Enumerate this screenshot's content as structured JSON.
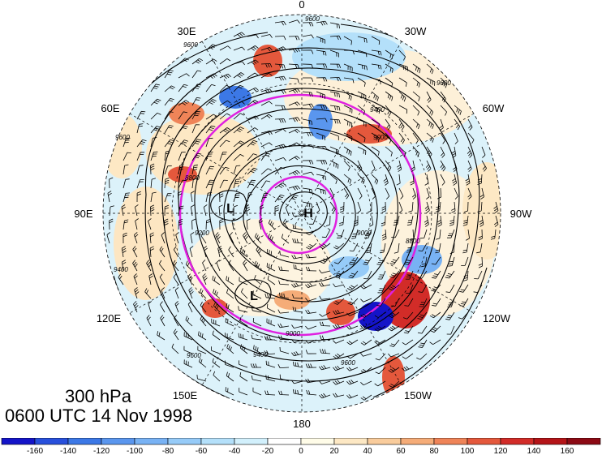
{
  "map": {
    "level_label": "300 hPa",
    "time_label": "0600 UTC 14 Nov 1998",
    "longitude_labels": {
      "top": "0",
      "bottom": "180",
      "left": "90E",
      "right": "90W",
      "upper_left": "30E",
      "upper_left2": "60E",
      "upper_right": "30W",
      "upper_right2": "60W",
      "lower_left": "120E",
      "lower_left2": "150E",
      "lower_right": "120W",
      "lower_right2": "150W"
    },
    "pressure_centers": [
      {
        "label": "L"
      },
      {
        "label": "H"
      },
      {
        "label": "L"
      }
    ],
    "contour_labels": [
      "9600",
      "9600",
      "9400",
      "9600",
      "9000",
      "8800",
      "9000",
      "9400",
      "9600",
      "9600",
      "9400",
      "9600",
      "9200",
      "9000",
      "8800"
    ],
    "colors": {
      "circle": "#e020e0",
      "contour": "#000000"
    }
  },
  "colorbar": {
    "tick_labels": [
      "-160",
      "-140",
      "-120",
      "-100",
      "-80",
      "-60",
      "-40",
      "-20",
      "0",
      "20",
      "40",
      "60",
      "80",
      "100",
      "120",
      "140",
      "160"
    ],
    "colors": [
      "#1414c8",
      "#2850dc",
      "#3c78e6",
      "#5a96ee",
      "#78b2f4",
      "#96cbf8",
      "#b4e0fa",
      "#d2f0fc",
      "#fffce8",
      "#fde8c4",
      "#f9cc9c",
      "#f5ac78",
      "#ef8458",
      "#e4583c",
      "#d22c28",
      "#b41418",
      "#8c0a14"
    ]
  }
}
